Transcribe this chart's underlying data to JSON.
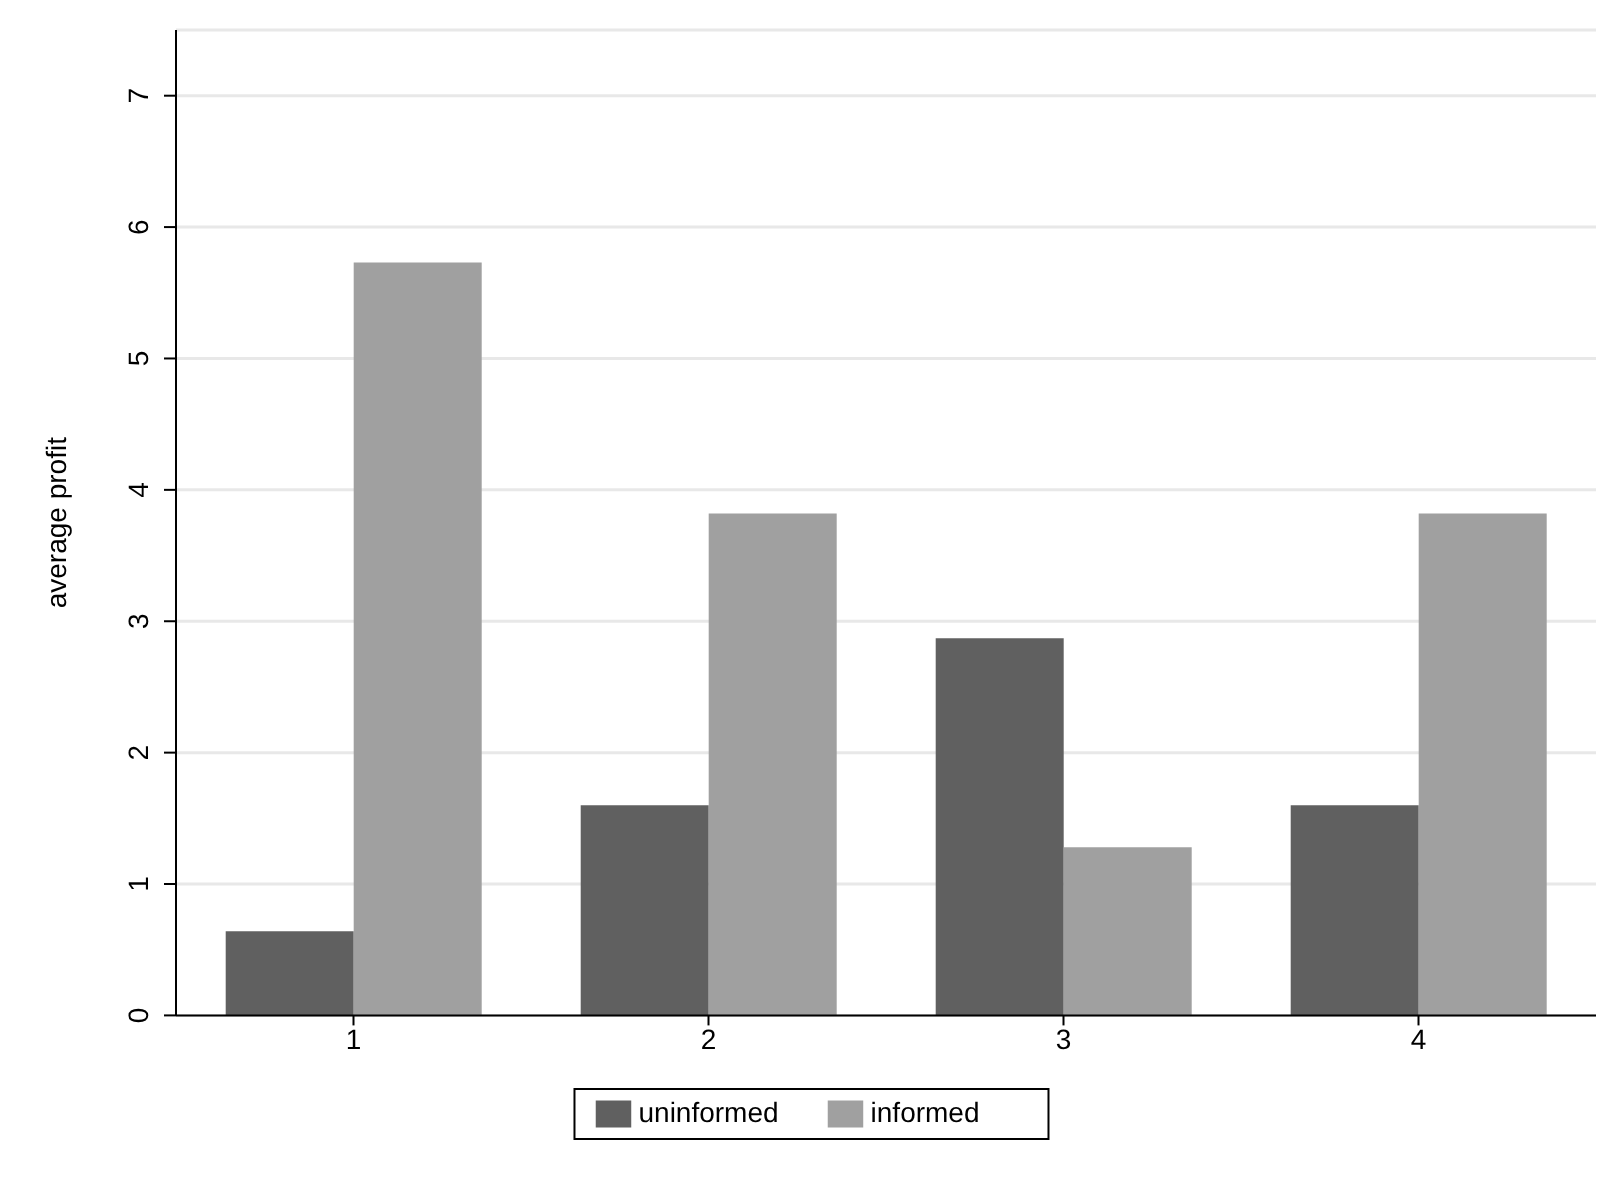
{
  "chart_data": {
    "type": "bar",
    "ylabel": "average profit",
    "categories": [
      "1",
      "2",
      "3",
      "4"
    ],
    "series": [
      {
        "name": "uninformed",
        "color": "#606060",
        "values": [
          0.64,
          1.6,
          2.87,
          1.6
        ]
      },
      {
        "name": "informed",
        "color": "#a0a0a0",
        "values": [
          5.73,
          3.82,
          1.28,
          3.82
        ]
      }
    ],
    "ylim": [
      0,
      7.5
    ],
    "yticks": [
      0,
      1,
      2,
      3,
      4,
      5,
      6,
      7
    ],
    "grid": "y",
    "legend": "bottom"
  }
}
